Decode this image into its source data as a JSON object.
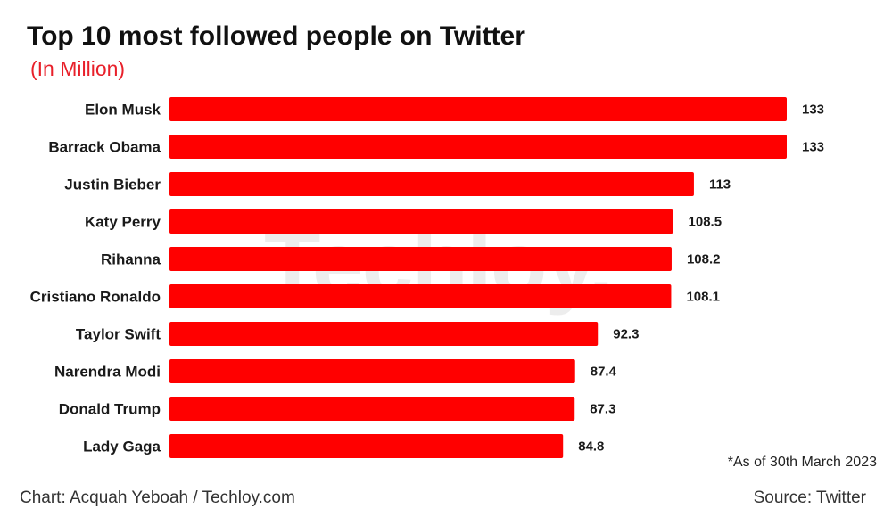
{
  "header": {
    "title": "Top 10 most followed people on Twitter",
    "subtitle": "(In Million)"
  },
  "watermark": "Techloy.",
  "footer": {
    "note": "*As of 30th March 2023",
    "credit": "Chart: Acquah Yeboah / Techloy.com",
    "source": "Source: Twitter"
  },
  "colors": {
    "bar": "#ff0000",
    "subtitle": "#e8202a",
    "text": "#1a1a1a"
  },
  "chart_data": {
    "type": "bar",
    "orientation": "horizontal",
    "title": "Top 10 most followed people on Twitter",
    "subtitle": "(In Million)",
    "categories": [
      "Elon Musk",
      "Barrack Obama",
      "Justin Bieber",
      "Katy Perry",
      "Rihanna",
      "Cristiano Ronaldo",
      "Taylor Swift",
      "Narendra Modi",
      "Donald Trump",
      "Lady Gaga"
    ],
    "values": [
      133,
      133,
      113,
      108.5,
      108.2,
      108.1,
      92.3,
      87.4,
      87.3,
      84.8
    ],
    "value_labels": [
      "133",
      "133",
      "113",
      "108.5",
      "108.2",
      "108.1",
      "92.3",
      "87.4",
      "87.3",
      "84.8"
    ],
    "xlim": [
      0,
      133
    ],
    "grid": false,
    "legend": "none"
  }
}
